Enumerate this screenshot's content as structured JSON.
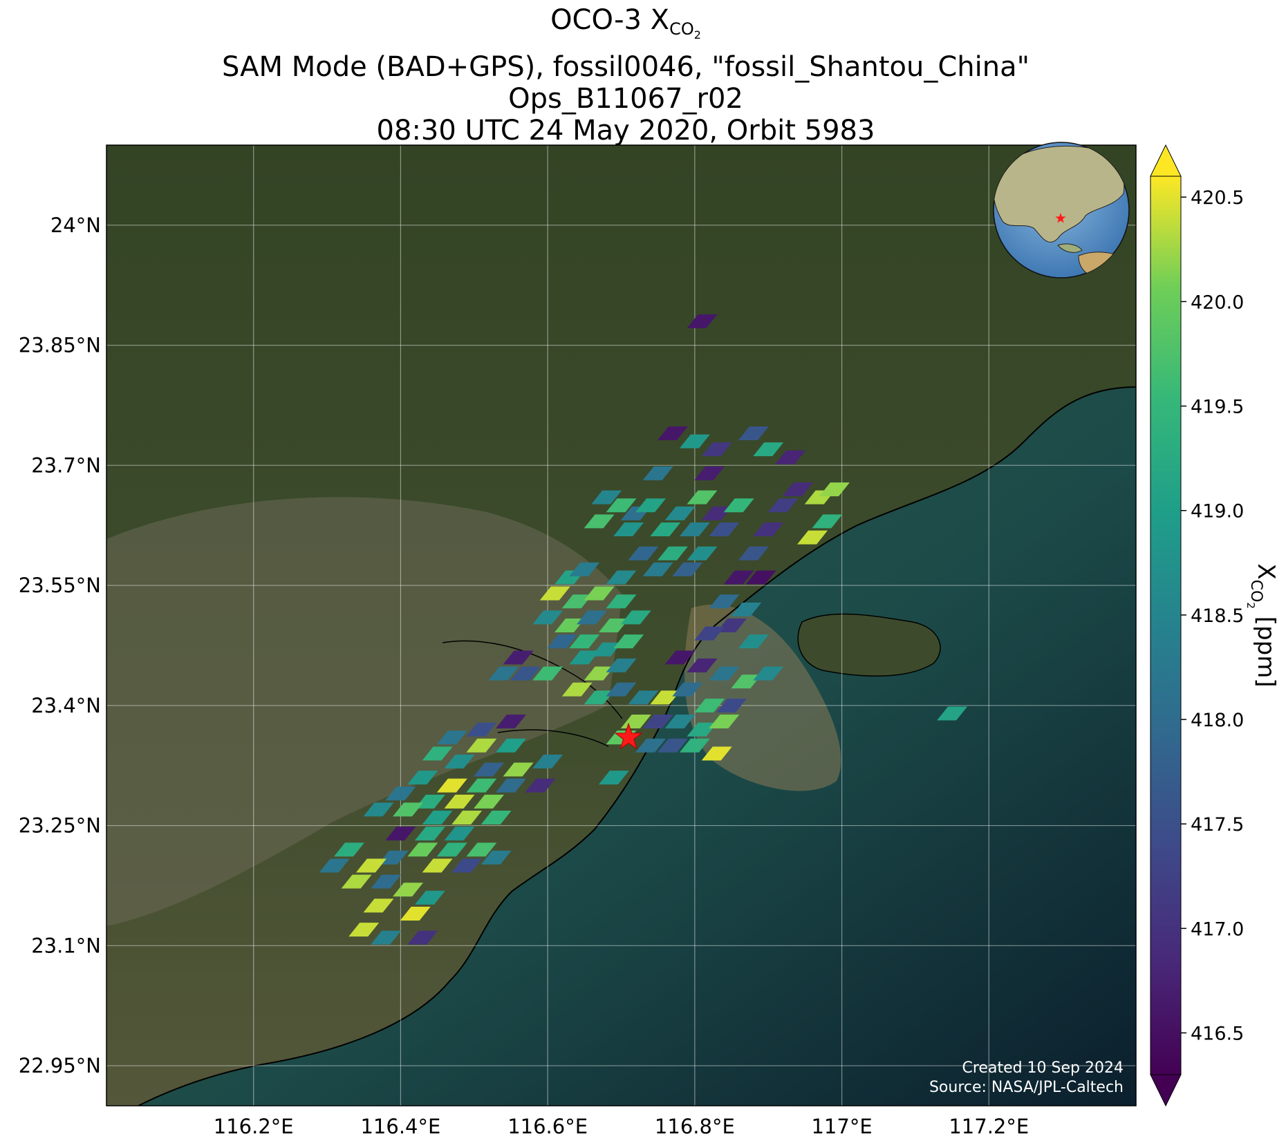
{
  "title": {
    "line1_prefix": "OCO-3 X",
    "line1_sub": "CO",
    "line1_subsub": "2",
    "line2": "SAM Mode (BAD+GPS), fossil0046, \"fossil_Shantou_China\"",
    "line3": "Ops_B11067_r02",
    "line4": "08:30 UTC 24 May 2020, Orbit 5983"
  },
  "axes": {
    "x_ticks": [
      "116.2°E",
      "116.4°E",
      "116.6°E",
      "116.8°E",
      "117°E",
      "117.2°E"
    ],
    "y_ticks": [
      "24°N",
      "23.85°N",
      "23.7°N",
      "23.55°N",
      "23.4°N",
      "23.25°N",
      "23.1°N",
      "22.95°N"
    ],
    "x_range": [
      116.0,
      117.4
    ],
    "y_range": [
      22.9,
      24.1
    ],
    "grid": true
  },
  "colorbar": {
    "label_prefix": "X",
    "label_sub": "CO",
    "label_subsub": "2",
    "label_suffix": " [ppm]",
    "ticks": [
      "420.5",
      "420.0",
      "419.5",
      "419.0",
      "418.5",
      "418.0",
      "417.5",
      "417.0",
      "416.5"
    ],
    "range": [
      416.3,
      420.6
    ],
    "extend": "both",
    "colormap": "viridis"
  },
  "credits": {
    "created": "Created 10 Sep 2024",
    "source": "Source: NASA/JPL-Caltech"
  },
  "colors": {
    "star": "#ff1a1a",
    "land": "#3b4a2a",
    "sea": "#1f4a47",
    "coast": "#000000"
  },
  "target": {
    "lon": 116.71,
    "lat": 23.36
  },
  "chart_data": {
    "type": "heatmap",
    "variable": "XCO2",
    "units": "ppm",
    "footprints": [
      {
        "lon": 116.81,
        "lat": 23.88,
        "v": 416.6
      },
      {
        "lon": 116.77,
        "lat": 23.74,
        "v": 416.6
      },
      {
        "lon": 116.8,
        "lat": 23.73,
        "v": 418.9
      },
      {
        "lon": 116.83,
        "lat": 23.72,
        "v": 417.1
      },
      {
        "lon": 116.88,
        "lat": 23.74,
        "v": 417.6
      },
      {
        "lon": 116.9,
        "lat": 23.72,
        "v": 419.2
      },
      {
        "lon": 116.93,
        "lat": 23.71,
        "v": 416.8
      },
      {
        "lon": 116.75,
        "lat": 23.69,
        "v": 418.2
      },
      {
        "lon": 116.82,
        "lat": 23.69,
        "v": 416.7
      },
      {
        "lon": 116.68,
        "lat": 23.66,
        "v": 418.5
      },
      {
        "lon": 116.7,
        "lat": 23.65,
        "v": 419.6
      },
      {
        "lon": 116.72,
        "lat": 23.64,
        "v": 418.1
      },
      {
        "lon": 116.74,
        "lat": 23.65,
        "v": 419.1
      },
      {
        "lon": 116.78,
        "lat": 23.64,
        "v": 418.6
      },
      {
        "lon": 116.81,
        "lat": 23.66,
        "v": 419.8
      },
      {
        "lon": 116.83,
        "lat": 23.64,
        "v": 416.9
      },
      {
        "lon": 116.86,
        "lat": 23.65,
        "v": 419.5
      },
      {
        "lon": 116.67,
        "lat": 23.63,
        "v": 419.7
      },
      {
        "lon": 116.71,
        "lat": 23.62,
        "v": 418.8
      },
      {
        "lon": 116.76,
        "lat": 23.62,
        "v": 419.2
      },
      {
        "lon": 116.8,
        "lat": 23.62,
        "v": 418.4
      },
      {
        "lon": 116.84,
        "lat": 23.62,
        "v": 417.5
      },
      {
        "lon": 116.73,
        "lat": 23.59,
        "v": 417.9
      },
      {
        "lon": 116.77,
        "lat": 23.59,
        "v": 419.3
      },
      {
        "lon": 116.81,
        "lat": 23.59,
        "v": 418.7
      },
      {
        "lon": 116.75,
        "lat": 23.57,
        "v": 418.3
      },
      {
        "lon": 116.79,
        "lat": 23.57,
        "v": 417.8
      },
      {
        "lon": 116.7,
        "lat": 23.56,
        "v": 418.6
      },
      {
        "lon": 116.94,
        "lat": 23.67,
        "v": 416.9
      },
      {
        "lon": 116.92,
        "lat": 23.65,
        "v": 417.2
      },
      {
        "lon": 116.9,
        "lat": 23.62,
        "v": 417.0
      },
      {
        "lon": 116.88,
        "lat": 23.59,
        "v": 417.6
      },
      {
        "lon": 116.86,
        "lat": 23.56,
        "v": 416.6
      },
      {
        "lon": 116.89,
        "lat": 23.56,
        "v": 416.5
      },
      {
        "lon": 116.84,
        "lat": 23.53,
        "v": 418.0
      },
      {
        "lon": 116.87,
        "lat": 23.52,
        "v": 418.4
      },
      {
        "lon": 116.85,
        "lat": 23.5,
        "v": 417.1
      },
      {
        "lon": 116.88,
        "lat": 23.48,
        "v": 418.7
      },
      {
        "lon": 116.82,
        "lat": 23.49,
        "v": 417.3
      },
      {
        "lon": 116.97,
        "lat": 23.66,
        "v": 420.3
      },
      {
        "lon": 116.99,
        "lat": 23.67,
        "v": 420.2
      },
      {
        "lon": 116.98,
        "lat": 23.63,
        "v": 419.4
      },
      {
        "lon": 116.96,
        "lat": 23.61,
        "v": 420.4
      },
      {
        "lon": 116.63,
        "lat": 23.56,
        "v": 419.1
      },
      {
        "lon": 116.65,
        "lat": 23.57,
        "v": 418.3
      },
      {
        "lon": 116.61,
        "lat": 23.54,
        "v": 420.4
      },
      {
        "lon": 116.64,
        "lat": 23.53,
        "v": 419.7
      },
      {
        "lon": 116.67,
        "lat": 23.54,
        "v": 420.1
      },
      {
        "lon": 116.7,
        "lat": 23.53,
        "v": 419.4
      },
      {
        "lon": 116.6,
        "lat": 23.51,
        "v": 418.6
      },
      {
        "lon": 116.63,
        "lat": 23.5,
        "v": 420.0
      },
      {
        "lon": 116.66,
        "lat": 23.51,
        "v": 418.1
      },
      {
        "lon": 116.69,
        "lat": 23.5,
        "v": 419.8
      },
      {
        "lon": 116.72,
        "lat": 23.51,
        "v": 419.2
      },
      {
        "lon": 116.62,
        "lat": 23.48,
        "v": 417.9
      },
      {
        "lon": 116.65,
        "lat": 23.48,
        "v": 419.5
      },
      {
        "lon": 116.68,
        "lat": 23.47,
        "v": 418.8
      },
      {
        "lon": 116.71,
        "lat": 23.48,
        "v": 419.6
      },
      {
        "lon": 116.56,
        "lat": 23.46,
        "v": 416.7
      },
      {
        "lon": 116.54,
        "lat": 23.44,
        "v": 418.2
      },
      {
        "lon": 116.57,
        "lat": 23.44,
        "v": 417.6
      },
      {
        "lon": 116.6,
        "lat": 23.44,
        "v": 419.6
      },
      {
        "lon": 116.65,
        "lat": 23.46,
        "v": 418.9
      },
      {
        "lon": 116.67,
        "lat": 23.44,
        "v": 420.2
      },
      {
        "lon": 116.7,
        "lat": 23.45,
        "v": 418.4
      },
      {
        "lon": 116.64,
        "lat": 23.42,
        "v": 420.3
      },
      {
        "lon": 116.67,
        "lat": 23.41,
        "v": 419.3
      },
      {
        "lon": 116.7,
        "lat": 23.42,
        "v": 418.0
      },
      {
        "lon": 116.78,
        "lat": 23.46,
        "v": 416.6
      },
      {
        "lon": 116.81,
        "lat": 23.45,
        "v": 416.8
      },
      {
        "lon": 116.84,
        "lat": 23.44,
        "v": 418.2
      },
      {
        "lon": 116.87,
        "lat": 23.43,
        "v": 419.8
      },
      {
        "lon": 116.9,
        "lat": 23.44,
        "v": 418.6
      },
      {
        "lon": 116.73,
        "lat": 23.41,
        "v": 418.4
      },
      {
        "lon": 116.76,
        "lat": 23.41,
        "v": 420.4
      },
      {
        "lon": 116.79,
        "lat": 23.42,
        "v": 418.0
      },
      {
        "lon": 116.82,
        "lat": 23.4,
        "v": 419.6
      },
      {
        "lon": 116.85,
        "lat": 23.4,
        "v": 417.4
      },
      {
        "lon": 116.72,
        "lat": 23.38,
        "v": 420.2
      },
      {
        "lon": 116.75,
        "lat": 23.38,
        "v": 417.3
      },
      {
        "lon": 116.78,
        "lat": 23.38,
        "v": 418.5
      },
      {
        "lon": 116.81,
        "lat": 23.37,
        "v": 419.2
      },
      {
        "lon": 116.84,
        "lat": 23.38,
        "v": 420.1
      },
      {
        "lon": 116.7,
        "lat": 23.36,
        "v": 419.9
      },
      {
        "lon": 116.74,
        "lat": 23.35,
        "v": 418.1
      },
      {
        "lon": 116.77,
        "lat": 23.35,
        "v": 417.6
      },
      {
        "lon": 116.8,
        "lat": 23.35,
        "v": 419.4
      },
      {
        "lon": 116.83,
        "lat": 23.34,
        "v": 420.5
      },
      {
        "lon": 116.69,
        "lat": 23.31,
        "v": 418.9
      },
      {
        "lon": 117.15,
        "lat": 23.39,
        "v": 419.1
      },
      {
        "lon": 116.55,
        "lat": 23.38,
        "v": 416.7
      },
      {
        "lon": 116.51,
        "lat": 23.37,
        "v": 417.5
      },
      {
        "lon": 116.47,
        "lat": 23.36,
        "v": 418.2
      },
      {
        "lon": 116.51,
        "lat": 23.35,
        "v": 420.3
      },
      {
        "lon": 116.55,
        "lat": 23.35,
        "v": 419.0
      },
      {
        "lon": 116.45,
        "lat": 23.34,
        "v": 419.4
      },
      {
        "lon": 116.48,
        "lat": 23.33,
        "v": 418.7
      },
      {
        "lon": 116.52,
        "lat": 23.32,
        "v": 417.8
      },
      {
        "lon": 116.56,
        "lat": 23.32,
        "v": 420.2
      },
      {
        "lon": 116.6,
        "lat": 23.33,
        "v": 418.4
      },
      {
        "lon": 116.43,
        "lat": 23.31,
        "v": 418.9
      },
      {
        "lon": 116.47,
        "lat": 23.3,
        "v": 420.5
      },
      {
        "lon": 116.51,
        "lat": 23.3,
        "v": 419.6
      },
      {
        "lon": 116.55,
        "lat": 23.3,
        "v": 418.0
      },
      {
        "lon": 116.59,
        "lat": 23.3,
        "v": 416.9
      },
      {
        "lon": 116.4,
        "lat": 23.29,
        "v": 418.2
      },
      {
        "lon": 116.44,
        "lat": 23.28,
        "v": 419.3
      },
      {
        "lon": 116.48,
        "lat": 23.28,
        "v": 420.4
      },
      {
        "lon": 116.52,
        "lat": 23.28,
        "v": 420.1
      },
      {
        "lon": 116.37,
        "lat": 23.27,
        "v": 418.6
      },
      {
        "lon": 116.41,
        "lat": 23.27,
        "v": 419.8
      },
      {
        "lon": 116.45,
        "lat": 23.26,
        "v": 419.0
      },
      {
        "lon": 116.49,
        "lat": 23.26,
        "v": 420.3
      },
      {
        "lon": 116.53,
        "lat": 23.26,
        "v": 419.5
      },
      {
        "lon": 116.4,
        "lat": 23.24,
        "v": 416.6
      },
      {
        "lon": 116.44,
        "lat": 23.24,
        "v": 419.2
      },
      {
        "lon": 116.48,
        "lat": 23.24,
        "v": 418.8
      },
      {
        "lon": 116.43,
        "lat": 23.22,
        "v": 420.0
      },
      {
        "lon": 116.47,
        "lat": 23.22,
        "v": 419.4
      },
      {
        "lon": 116.51,
        "lat": 23.22,
        "v": 419.7
      },
      {
        "lon": 116.39,
        "lat": 23.21,
        "v": 418.1
      },
      {
        "lon": 116.45,
        "lat": 23.2,
        "v": 420.4
      },
      {
        "lon": 116.49,
        "lat": 23.2,
        "v": 417.4
      },
      {
        "lon": 116.53,
        "lat": 23.21,
        "v": 418.3
      },
      {
        "lon": 116.33,
        "lat": 23.22,
        "v": 419.3
      },
      {
        "lon": 116.36,
        "lat": 23.2,
        "v": 420.4
      },
      {
        "lon": 116.31,
        "lat": 23.2,
        "v": 418.2
      },
      {
        "lon": 116.34,
        "lat": 23.18,
        "v": 420.3
      },
      {
        "lon": 116.38,
        "lat": 23.18,
        "v": 418.0
      },
      {
        "lon": 116.41,
        "lat": 23.17,
        "v": 420.2
      },
      {
        "lon": 116.44,
        "lat": 23.16,
        "v": 418.9
      },
      {
        "lon": 116.37,
        "lat": 23.15,
        "v": 420.4
      },
      {
        "lon": 116.42,
        "lat": 23.14,
        "v": 420.5
      },
      {
        "lon": 116.35,
        "lat": 23.12,
        "v": 420.4
      },
      {
        "lon": 116.38,
        "lat": 23.11,
        "v": 418.4
      },
      {
        "lon": 116.43,
        "lat": 23.11,
        "v": 417.0
      }
    ]
  }
}
